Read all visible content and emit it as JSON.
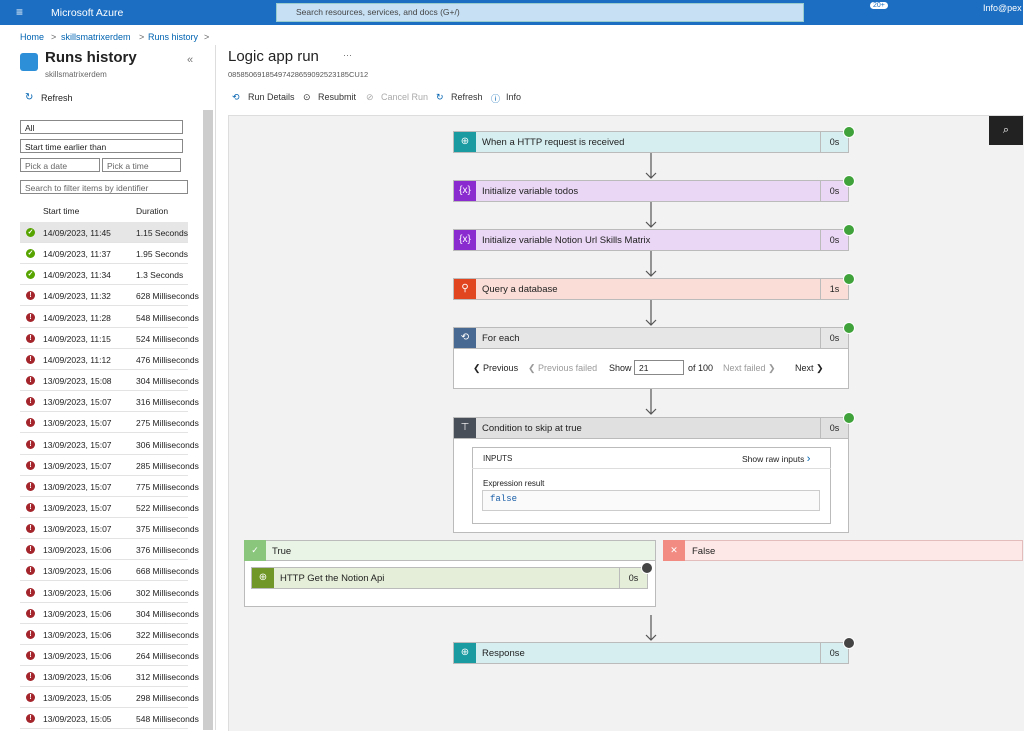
{
  "topbar": {
    "brand": "Microsoft Azure",
    "search": "Search resources, services, and docs (G+/)",
    "badge": "20+",
    "user": "Info@pex"
  },
  "breadcrumb": [
    "Home",
    "skillsmatrixerdem",
    "Runs history"
  ],
  "sidebar": {
    "title": "Runs history",
    "subtitle": "skillsmatrixerdem",
    "refresh": "Refresh",
    "status_filter": "All",
    "time_filter": "Start time earlier than",
    "date_placeholder": "Pick a date",
    "time_placeholder": "Pick a time",
    "search_placeholder": "Search to filter items by identifier",
    "columns": [
      "Start time",
      "Duration"
    ],
    "runs": [
      {
        "start": "14/09/2023, 11:45",
        "duration": "1.15 Seconds",
        "failed": false
      },
      {
        "start": "14/09/2023, 11:37",
        "duration": "1.95 Seconds",
        "failed": false
      },
      {
        "start": "14/09/2023, 11:34",
        "duration": "1.3 Seconds",
        "failed": false
      },
      {
        "start": "14/09/2023, 11:32",
        "duration": "628 Milliseconds",
        "failed": true
      },
      {
        "start": "14/09/2023, 11:28",
        "duration": "548 Milliseconds",
        "failed": true
      },
      {
        "start": "14/09/2023, 11:15",
        "duration": "524 Milliseconds",
        "failed": true
      },
      {
        "start": "14/09/2023, 11:12",
        "duration": "476 Milliseconds",
        "failed": true
      },
      {
        "start": "13/09/2023, 15:08",
        "duration": "304 Milliseconds",
        "failed": true
      },
      {
        "start": "13/09/2023, 15:07",
        "duration": "316 Milliseconds",
        "failed": true
      },
      {
        "start": "13/09/2023, 15:07",
        "duration": "275 Milliseconds",
        "failed": true
      },
      {
        "start": "13/09/2023, 15:07",
        "duration": "306 Milliseconds",
        "failed": true
      },
      {
        "start": "13/09/2023, 15:07",
        "duration": "285 Milliseconds",
        "failed": true
      },
      {
        "start": "13/09/2023, 15:07",
        "duration": "775 Milliseconds",
        "failed": true
      },
      {
        "start": "13/09/2023, 15:07",
        "duration": "522 Milliseconds",
        "failed": true
      },
      {
        "start": "13/09/2023, 15:07",
        "duration": "375 Milliseconds",
        "failed": true
      },
      {
        "start": "13/09/2023, 15:06",
        "duration": "376 Milliseconds",
        "failed": true
      },
      {
        "start": "13/09/2023, 15:06",
        "duration": "668 Milliseconds",
        "failed": true
      },
      {
        "start": "13/09/2023, 15:06",
        "duration": "302 Milliseconds",
        "failed": true
      },
      {
        "start": "13/09/2023, 15:06",
        "duration": "304 Milliseconds",
        "failed": true
      },
      {
        "start": "13/09/2023, 15:06",
        "duration": "322 Milliseconds",
        "failed": true
      },
      {
        "start": "13/09/2023, 15:06",
        "duration": "264 Milliseconds",
        "failed": true
      },
      {
        "start": "13/09/2023, 15:06",
        "duration": "312 Milliseconds",
        "failed": true
      },
      {
        "start": "13/09/2023, 15:05",
        "duration": "298 Milliseconds",
        "failed": true
      },
      {
        "start": "13/09/2023, 15:05",
        "duration": "548 Milliseconds",
        "failed": true
      }
    ]
  },
  "main": {
    "title": "Logic app run",
    "run_id": "08585069185497428659092523185CU12",
    "toolbar": [
      "Run Details",
      "Resubmit",
      "Cancel Run",
      "Refresh",
      "Info"
    ],
    "steps": [
      {
        "name": "When a HTTP request is received",
        "duration": "0s"
      },
      {
        "name": "Initialize variable todos",
        "duration": "0s"
      },
      {
        "name": "Initialize variable Notion Url Skills Matrix",
        "duration": "0s"
      },
      {
        "name": "Query a database",
        "duration": "1s"
      },
      {
        "name": "For each",
        "duration": "0s"
      },
      {
        "name": "Condition to skip at true",
        "duration": "0s"
      },
      {
        "name": "HTTP Get the Notion Api",
        "duration": "0s"
      },
      {
        "name": "Response",
        "duration": "0s"
      }
    ],
    "foreach": {
      "previous": "Previous",
      "previous_failed": "Previous failed",
      "show": "Show",
      "index": "21",
      "of": "of 100",
      "next_failed": "Next failed",
      "next": "Next"
    },
    "condition": {
      "inputs": "INPUTS",
      "raw": "Show raw inputs",
      "expression_label": "Expression result",
      "expression_value": "false"
    },
    "branches": {
      "true": "True",
      "false": "False"
    }
  }
}
